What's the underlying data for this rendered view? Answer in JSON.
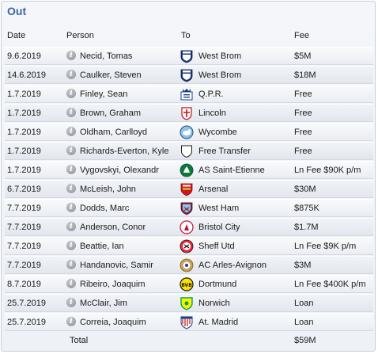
{
  "title": "Out",
  "headers": {
    "date": "Date",
    "person": "Person",
    "to": "To",
    "fee": "Fee"
  },
  "rows": [
    {
      "date": "9.6.2019",
      "person": "Necid, Tomas",
      "club": "West Brom",
      "fee": "$5M",
      "crest": "westbrom-crest"
    },
    {
      "date": "14.6.2019",
      "person": "Caulker, Steven",
      "club": "West Brom",
      "fee": "$18M",
      "crest": "westbrom-crest"
    },
    {
      "date": "1.7.2019",
      "person": "Finley, Sean",
      "club": "Q.P.R.",
      "fee": "Free",
      "crest": "qpr-crest"
    },
    {
      "date": "1.7.2019",
      "person": "Brown, Graham",
      "club": "Lincoln",
      "fee": "Free",
      "crest": "lincoln-crest"
    },
    {
      "date": "1.7.2019",
      "person": "Oldham, Carlloyd",
      "club": "Wycombe",
      "fee": "Free",
      "crest": "wycombe-crest"
    },
    {
      "date": "1.7.2019",
      "person": "Richards-Everton, Kyle",
      "club": "Free Transfer",
      "fee": "Free",
      "crest": "free-transfer-shield-icon"
    },
    {
      "date": "1.7.2019",
      "person": "Vygovskyi, Olexandr",
      "club": "AS Saint-Etienne",
      "fee": "Ln Fee $90K p/m",
      "crest": "saint-etienne-crest"
    },
    {
      "date": "6.7.2019",
      "person": "McLeish, John",
      "club": "Arsenal",
      "fee": "$30M",
      "crest": "arsenal-crest"
    },
    {
      "date": "7.7.2019",
      "person": "Dodds, Marc",
      "club": "West Ham",
      "fee": "$875K",
      "crest": "westham-crest"
    },
    {
      "date": "7.7.2019",
      "person": "Anderson, Conor",
      "club": "Bristol City",
      "fee": "$1.7M",
      "crest": "bristol-city-crest"
    },
    {
      "date": "7.7.2019",
      "person": "Beattie, Ian",
      "club": "Sheff Utd",
      "fee": "Ln Fee $9K p/m",
      "crest": "sheff-utd-crest"
    },
    {
      "date": "7.7.2019",
      "person": "Handanovic, Samir",
      "club": "AC Arles-Avignon",
      "fee": "$3M",
      "crest": "arles-avignon-crest"
    },
    {
      "date": "8.7.2019",
      "person": "Ribeiro, Joaquim",
      "club": "Dortmund",
      "fee": "Ln Fee $400K p/m",
      "crest": "dortmund-crest"
    },
    {
      "date": "25.7.2019",
      "person": "McClair, Jim",
      "club": "Norwich",
      "fee": "Loan",
      "crest": "norwich-crest"
    },
    {
      "date": "25.7.2019",
      "person": "Correia, Joaquim",
      "club": "At. Madrid",
      "fee": "Loan",
      "crest": "atletico-crest"
    }
  ],
  "total": {
    "label": "Total",
    "fee": "$59M"
  },
  "info_glyph": "i"
}
